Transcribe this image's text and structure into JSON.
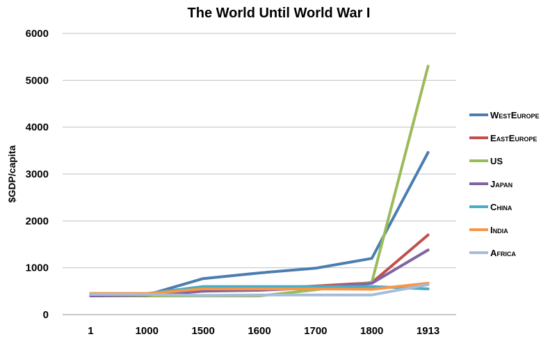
{
  "chart_data": {
    "type": "line",
    "title": "The World Until World War I",
    "xlabel": "",
    "ylabel": "$GDP/capita",
    "categories": [
      "1",
      "1000",
      "1500",
      "1600",
      "1700",
      "1800",
      "1913"
    ],
    "ylim": [
      0,
      6000
    ],
    "yticks": [
      0,
      1000,
      2000,
      3000,
      4000,
      5000,
      6000
    ],
    "grid": true,
    "legend_position": "right",
    "series": [
      {
        "name": "WestEurope",
        "color": "#4a7eb0",
        "values": [
          450,
          420,
          770,
          890,
          990,
          1200,
          3460
        ]
      },
      {
        "name": "EastEurope",
        "color": "#c0504d",
        "values": [
          410,
          400,
          500,
          550,
          610,
          680,
          1700
        ]
      },
      {
        "name": "US",
        "color": "#9bbb59",
        "values": [
          400,
          400,
          400,
          400,
          530,
          690,
          5300
        ]
      },
      {
        "name": "Japan",
        "color": "#8064a2",
        "values": [
          400,
          420,
          500,
          520,
          570,
          670,
          1380
        ]
      },
      {
        "name": "China",
        "color": "#4bacc6",
        "values": [
          450,
          450,
          600,
          600,
          600,
          600,
          550
        ]
      },
      {
        "name": "India",
        "color": "#f79646",
        "values": [
          450,
          450,
          550,
          550,
          550,
          540,
          670
        ]
      },
      {
        "name": "Africa",
        "color": "#a6bcd8",
        "values": [
          430,
          430,
          410,
          420,
          420,
          420,
          640
        ]
      }
    ]
  }
}
